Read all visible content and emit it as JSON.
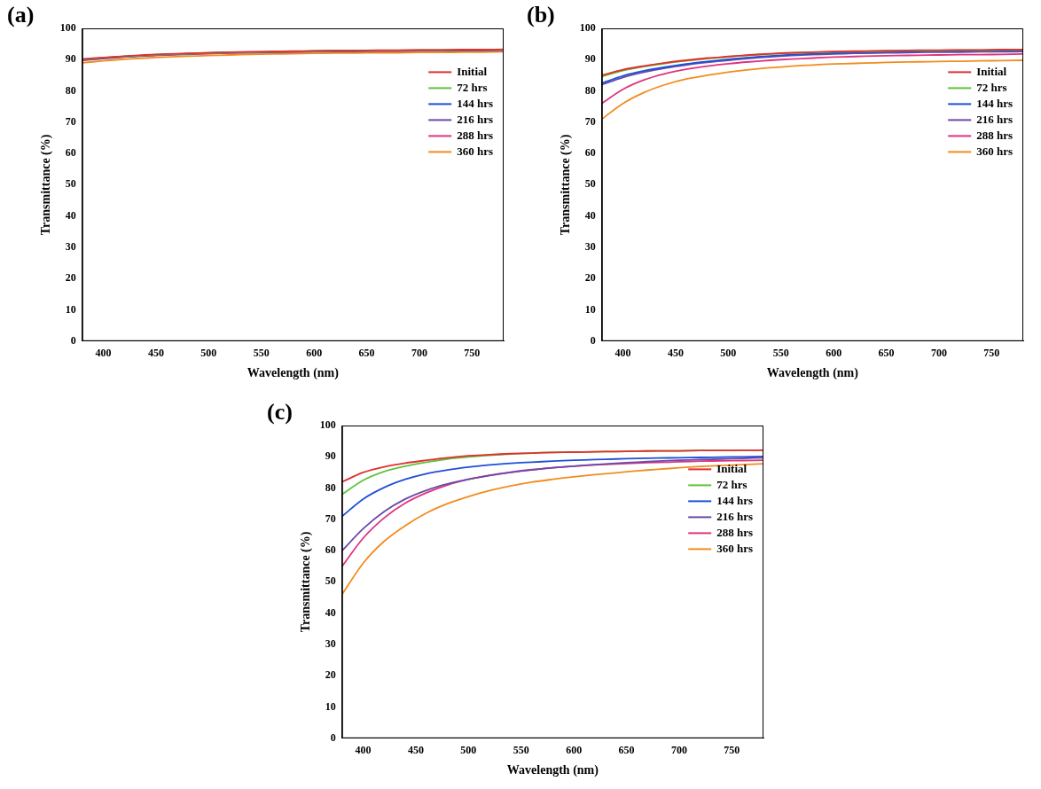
{
  "chart_data": [
    {
      "type": "line",
      "label": "(a)",
      "x_label": "Wavelength (nm)",
      "y_label": "Transmittance (%)",
      "xlim": [
        380,
        780
      ],
      "ylim": [
        0,
        100
      ],
      "xticks": [
        400,
        450,
        500,
        550,
        600,
        650,
        700,
        750
      ],
      "yticks": [
        0,
        10,
        20,
        30,
        40,
        50,
        60,
        70,
        80,
        90,
        100
      ],
      "grid": false,
      "legend": "upper right",
      "x": [
        380,
        400,
        420,
        440,
        460,
        480,
        500,
        520,
        540,
        560,
        580,
        600,
        620,
        640,
        660,
        680,
        700,
        720,
        740,
        760,
        780
      ],
      "series": [
        {
          "name": "Initial",
          "color": "#e0302f",
          "values": [
            90.2,
            90.7,
            91.1,
            91.5,
            91.8,
            92.0,
            92.2,
            92.4,
            92.5,
            92.6,
            92.7,
            92.8,
            92.9,
            92.9,
            93.0,
            93.0,
            93.1,
            93.1,
            93.2,
            93.2,
            93.3
          ]
        },
        {
          "name": "72 hrs",
          "color": "#5ec43a",
          "values": [
            90.1,
            90.6,
            91.0,
            91.4,
            91.7,
            91.9,
            92.1,
            92.3,
            92.4,
            92.5,
            92.6,
            92.7,
            92.8,
            92.8,
            92.9,
            92.9,
            93.0,
            93.0,
            93.1,
            93.1,
            93.2
          ]
        },
        {
          "name": "144 hrs",
          "color": "#1f4fd6",
          "values": [
            90.0,
            90.5,
            91.0,
            91.3,
            91.6,
            91.9,
            92.1,
            92.3,
            92.4,
            92.5,
            92.6,
            92.7,
            92.8,
            92.8,
            92.9,
            92.9,
            93.0,
            93.0,
            93.0,
            93.1,
            93.1
          ]
        },
        {
          "name": "216 hrs",
          "color": "#6b4aa8",
          "values": [
            89.9,
            90.4,
            90.9,
            91.3,
            91.6,
            91.8,
            92.0,
            92.2,
            92.3,
            92.4,
            92.5,
            92.6,
            92.7,
            92.7,
            92.8,
            92.8,
            92.9,
            92.9,
            93.0,
            93.0,
            93.1
          ]
        },
        {
          "name": "288 hrs",
          "color": "#e0337f",
          "values": [
            89.8,
            90.3,
            90.8,
            91.2,
            91.5,
            91.7,
            91.9,
            92.1,
            92.2,
            92.3,
            92.4,
            92.5,
            92.6,
            92.6,
            92.7,
            92.7,
            92.8,
            92.8,
            92.9,
            92.9,
            93.0
          ]
        },
        {
          "name": "360 hrs",
          "color": "#f28c1e",
          "values": [
            89.0,
            89.6,
            90.1,
            90.5,
            90.8,
            91.1,
            91.3,
            91.5,
            91.7,
            91.8,
            91.9,
            92.0,
            92.1,
            92.1,
            92.2,
            92.2,
            92.3,
            92.3,
            92.4,
            92.4,
            92.5
          ]
        }
      ]
    },
    {
      "type": "line",
      "label": "(b)",
      "x_label": "Wavelength (nm)",
      "y_label": "Transmittance (%)",
      "xlim": [
        380,
        780
      ],
      "ylim": [
        0,
        100
      ],
      "xticks": [
        400,
        450,
        500,
        550,
        600,
        650,
        700,
        750
      ],
      "yticks": [
        0,
        10,
        20,
        30,
        40,
        50,
        60,
        70,
        80,
        90,
        100
      ],
      "grid": false,
      "legend": "upper right",
      "x": [
        380,
        400,
        420,
        440,
        460,
        480,
        500,
        520,
        540,
        560,
        580,
        600,
        620,
        640,
        660,
        680,
        700,
        720,
        740,
        760,
        780
      ],
      "series": [
        {
          "name": "Initial",
          "color": "#e0302f",
          "values": [
            85.0,
            86.8,
            88.0,
            89.0,
            89.8,
            90.5,
            91.0,
            91.5,
            91.9,
            92.2,
            92.4,
            92.6,
            92.7,
            92.8,
            92.9,
            93.0,
            93.0,
            93.1,
            93.1,
            93.2,
            93.2
          ]
        },
        {
          "name": "72 hrs",
          "color": "#5ec43a",
          "values": [
            84.6,
            86.5,
            87.8,
            88.8,
            89.6,
            90.3,
            90.9,
            91.4,
            91.8,
            92.1,
            92.3,
            92.5,
            92.6,
            92.7,
            92.8,
            92.9,
            92.9,
            93.0,
            93.0,
            93.1,
            93.1
          ]
        },
        {
          "name": "144 hrs",
          "color": "#1f4fd6",
          "values": [
            82.5,
            84.8,
            86.4,
            87.6,
            88.6,
            89.4,
            90.1,
            90.7,
            91.2,
            91.6,
            91.9,
            92.1,
            92.3,
            92.4,
            92.5,
            92.6,
            92.7,
            92.7,
            92.8,
            92.8,
            92.9
          ]
        },
        {
          "name": "216 hrs",
          "color": "#6b4aa8",
          "values": [
            82.0,
            84.3,
            86.0,
            87.3,
            88.3,
            89.1,
            89.8,
            90.4,
            90.9,
            91.3,
            91.6,
            91.8,
            92.0,
            92.1,
            92.2,
            92.3,
            92.4,
            92.4,
            92.5,
            92.5,
            92.6
          ]
        },
        {
          "name": "288 hrs",
          "color": "#e0337f",
          "values": [
            76.0,
            80.5,
            83.5,
            85.5,
            86.9,
            87.9,
            88.7,
            89.3,
            89.8,
            90.2,
            90.5,
            90.8,
            91.0,
            91.2,
            91.3,
            91.4,
            91.5,
            91.6,
            91.6,
            91.7,
            91.8
          ]
        },
        {
          "name": "360 hrs",
          "color": "#f28c1e",
          "values": [
            71.0,
            76.0,
            79.5,
            82.0,
            83.8,
            85.0,
            86.0,
            86.8,
            87.4,
            87.9,
            88.3,
            88.6,
            88.8,
            89.0,
            89.2,
            89.3,
            89.4,
            89.5,
            89.6,
            89.7,
            89.8
          ]
        }
      ]
    },
    {
      "type": "line",
      "label": "(c)",
      "x_label": "Wavelength (nm)",
      "y_label": "Transmittance (%)",
      "xlim": [
        380,
        780
      ],
      "ylim": [
        0,
        100
      ],
      "xticks": [
        400,
        450,
        500,
        550,
        600,
        650,
        700,
        750
      ],
      "yticks": [
        0,
        10,
        20,
        30,
        40,
        50,
        60,
        70,
        80,
        90,
        100
      ],
      "grid": false,
      "legend": "upper right",
      "x": [
        380,
        400,
        420,
        440,
        460,
        480,
        500,
        520,
        540,
        560,
        580,
        600,
        620,
        640,
        660,
        680,
        700,
        720,
        740,
        760,
        780
      ],
      "series": [
        {
          "name": "Initial",
          "color": "#e0302f",
          "values": [
            82.0,
            85.0,
            86.8,
            88.0,
            88.9,
            89.7,
            90.3,
            90.7,
            91.0,
            91.2,
            91.4,
            91.5,
            91.6,
            91.7,
            91.8,
            91.9,
            91.9,
            92.0,
            92.0,
            92.1,
            92.1
          ]
        },
        {
          "name": "72 hrs",
          "color": "#5ec43a",
          "values": [
            78.0,
            82.5,
            85.3,
            87.0,
            88.3,
            89.3,
            90.0,
            90.5,
            90.9,
            91.2,
            91.4,
            91.5,
            91.6,
            91.7,
            91.8,
            91.9,
            91.9,
            92.0,
            92.0,
            92.1,
            92.1
          ]
        },
        {
          "name": "144 hrs",
          "color": "#1f4fd6",
          "values": [
            71.0,
            76.5,
            80.2,
            82.8,
            84.6,
            85.8,
            86.7,
            87.4,
            87.9,
            88.3,
            88.6,
            88.9,
            89.1,
            89.3,
            89.5,
            89.6,
            89.7,
            89.8,
            89.9,
            90.0,
            90.1
          ]
        },
        {
          "name": "216 hrs",
          "color": "#6b4aa8",
          "values": [
            60.0,
            67.0,
            72.5,
            76.5,
            79.3,
            81.3,
            82.8,
            84.0,
            85.0,
            85.8,
            86.5,
            87.0,
            87.5,
            87.9,
            88.3,
            88.6,
            88.9,
            89.1,
            89.3,
            89.5,
            89.7
          ]
        },
        {
          "name": "288 hrs",
          "color": "#e0337f",
          "values": [
            55.0,
            64.0,
            70.5,
            75.2,
            78.5,
            81.0,
            82.8,
            84.1,
            85.1,
            85.9,
            86.5,
            87.0,
            87.4,
            87.7,
            88.0,
            88.2,
            88.4,
            88.6,
            88.7,
            88.8,
            88.9
          ]
        },
        {
          "name": "360 hrs",
          "color": "#f28c1e",
          "values": [
            46.0,
            56.0,
            63.0,
            68.0,
            72.0,
            75.0,
            77.3,
            79.2,
            80.7,
            81.9,
            82.8,
            83.6,
            84.3,
            84.9,
            85.5,
            86.0,
            86.5,
            86.9,
            87.2,
            87.5,
            87.8
          ]
        }
      ]
    }
  ]
}
